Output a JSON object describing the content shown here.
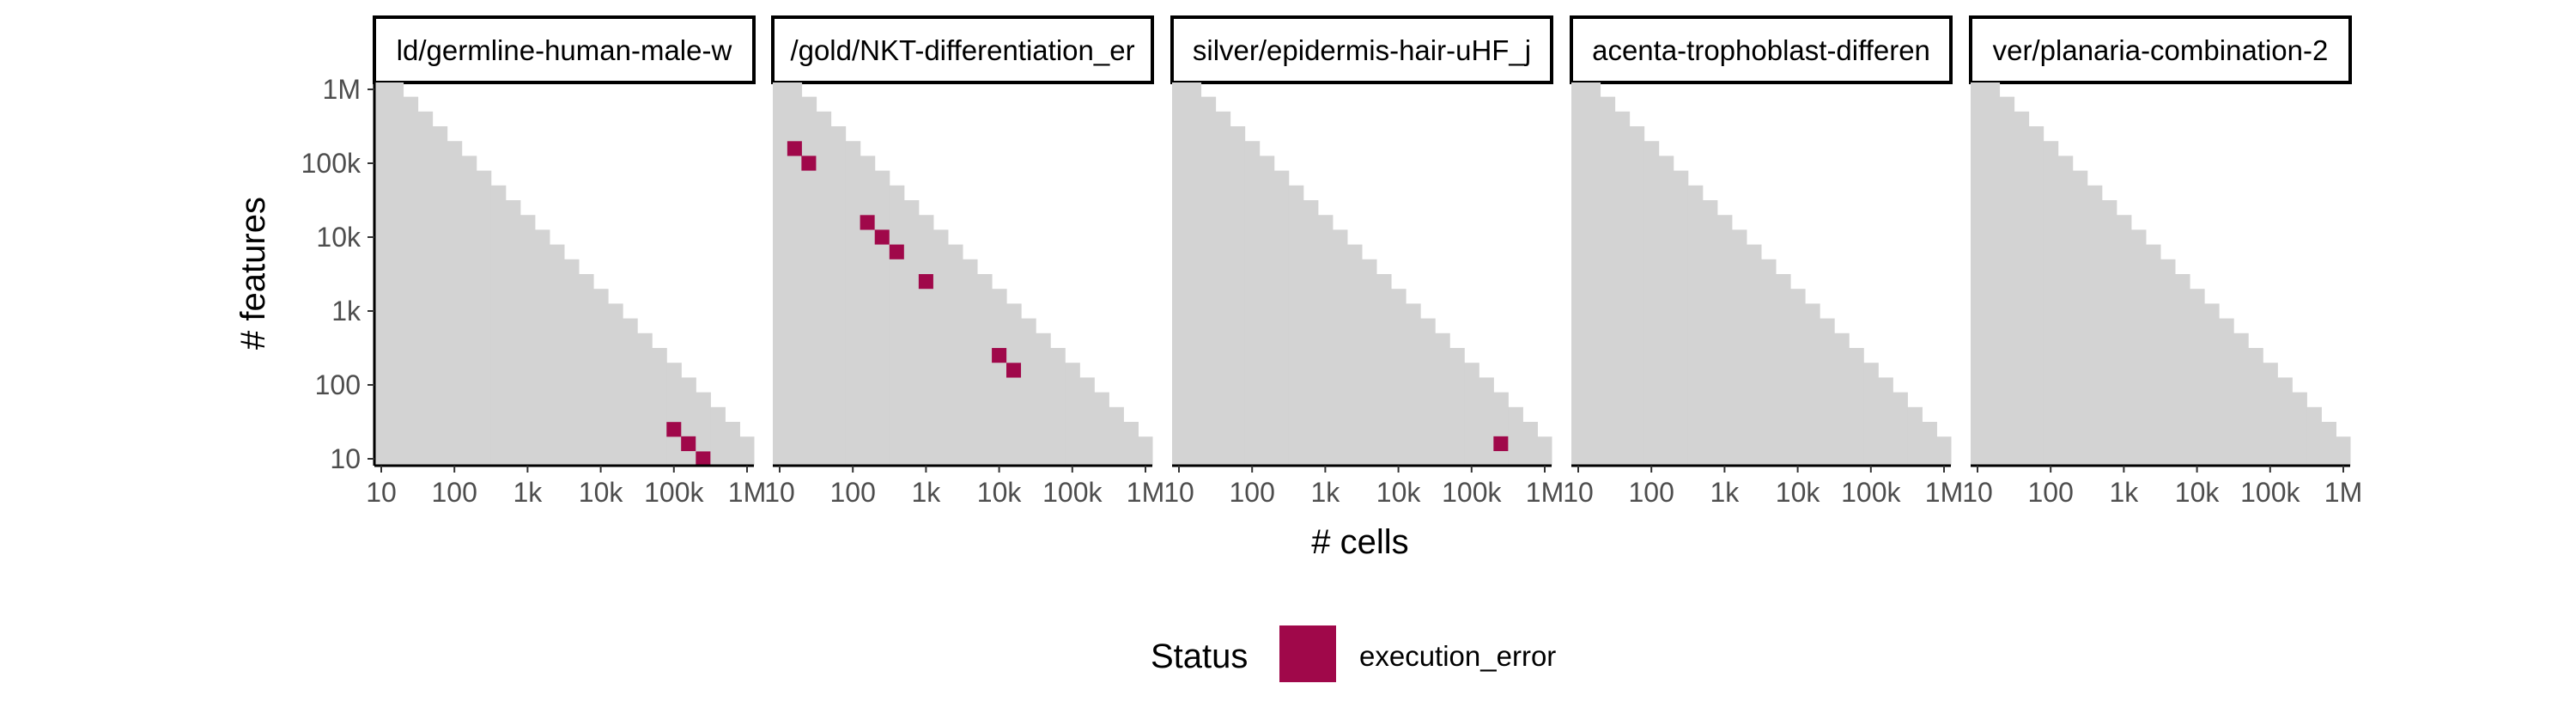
{
  "chart_data": {
    "type": "heatmap",
    "xlabel": "# cells",
    "ylabel": "# features",
    "x_scale": "log10",
    "y_scale": "log10",
    "xlim": [
      10,
      1000000
    ],
    "ylim": [
      10,
      1000000
    ],
    "x_tick_labels": [
      "10",
      "100",
      "1k",
      "10k",
      "100k",
      "1M"
    ],
    "y_tick_labels": [
      "10",
      "100",
      "1k",
      "10k",
      "100k",
      "1M"
    ],
    "x_tick_values": [
      10,
      100,
      1000,
      10000,
      100000,
      1000000
    ],
    "y_tick_values": [
      10,
      100,
      1000,
      10000,
      100000,
      1000000
    ],
    "background_color": "#d3d3d3",
    "background_note": "",
    "panels": [
      {
        "strip_label": "ld/germline-human-male-w",
        "cells": [
          {
            "x": 100000,
            "y": 25
          },
          {
            "x": 158000,
            "y": 16
          },
          {
            "x": 251000,
            "y": 10
          }
        ]
      },
      {
        "strip_label": "/gold/NKT-differentiation_er",
        "cells": [
          {
            "x": 16,
            "y": 158000
          },
          {
            "x": 25,
            "y": 100000
          },
          {
            "x": 158,
            "y": 15800
          },
          {
            "x": 251,
            "y": 10000
          },
          {
            "x": 398,
            "y": 6310
          },
          {
            "x": 1000,
            "y": 2510
          },
          {
            "x": 10000,
            "y": 251
          },
          {
            "x": 15800,
            "y": 158
          }
        ]
      },
      {
        "strip_label": "silver/epidermis-hair-uHF_j",
        "cells": [
          {
            "x": 251000,
            "y": 16
          }
        ]
      },
      {
        "strip_label": "acenta-trophoblast-differen",
        "cells": []
      },
      {
        "strip_label": "ver/planaria-combination-2",
        "cells": []
      }
    ],
    "legend": {
      "title": "Status",
      "items": [
        {
          "label": "execution_error",
          "color": "#a0084a"
        }
      ],
      "position": "bottom"
    }
  }
}
